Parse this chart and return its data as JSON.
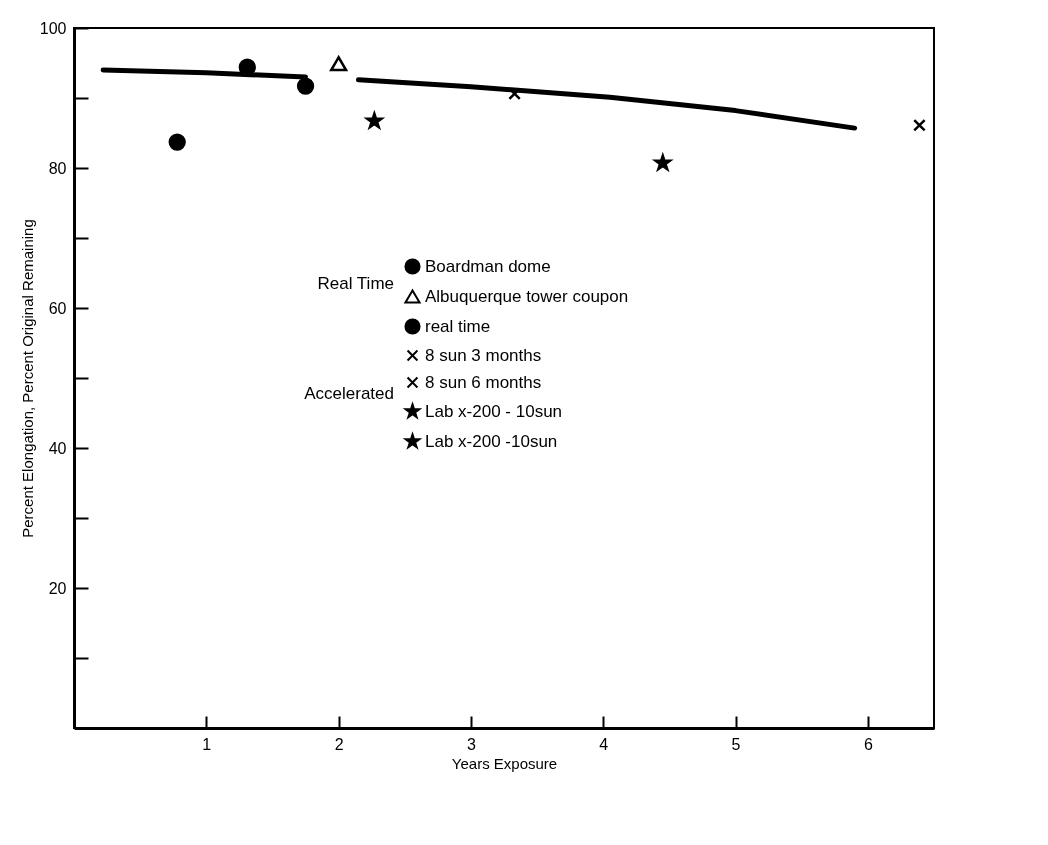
{
  "chart_data": {
    "type": "scatter",
    "xlabel": "Years Exposure",
    "ylabel": "Percent Elongation, Percent Original Remaining",
    "xlim": [
      0,
      6.5
    ],
    "ylim": [
      0,
      100
    ],
    "xticks": [
      1,
      2,
      3,
      4,
      5,
      6
    ],
    "yticks": [
      {
        "value": 10,
        "label": null
      },
      20,
      {
        "value": 30,
        "label": null
      },
      40,
      {
        "value": 50,
        "label": null
      },
      60,
      {
        "value": 70,
        "label": null
      },
      80,
      {
        "value": 90,
        "label": null
      },
      100
    ],
    "grid": false,
    "legend": "top right",
    "annotations": [
      "Real Time",
      "Accelerated"
    ],
    "series": [
      {
        "name": "Boardman dome",
        "color": "#000000",
        "marker": "circle",
        "x": [
          1.31,
          1.75
        ],
        "values": [
          94.4,
          91.7
        ]
      },
      {
        "name": "Albuquerque tower coupon",
        "color": "#000000",
        "marker": "triangle",
        "x": [
          2.0
        ],
        "values": [
          94.9
        ]
      },
      {
        "name": "real time",
        "color": "#000000",
        "marker": "circle",
        "x": [
          0.78
        ],
        "values": [
          83.7
        ]
      },
      {
        "name": "8 sun 3 months",
        "color": "#000000",
        "marker": "cross",
        "x": [
          3.33
        ],
        "values": [
          90.6
        ]
      },
      {
        "name": "8 sun 6 months",
        "color": "#000000",
        "marker": "cross",
        "x": [
          6.39
        ],
        "values": [
          86.1
        ]
      },
      {
        "name": "Lab x-200 - 10sun",
        "color": "#000000",
        "marker": "star",
        "x": [
          2.27
        ],
        "values": [
          86.7
        ]
      },
      {
        "name": "Lab x-200 -10sun",
        "color": "#000000",
        "marker": "star",
        "x": [
          4.45
        ],
        "values": [
          80.7
        ]
      },
      {
        "type": "line",
        "color": "#000000",
        "x": [
          0.22,
          1.0,
          1.75,
          1.95,
          2.15,
          3.0,
          4.05,
          5.0,
          5.9
        ],
        "values": [
          94.0,
          93.6,
          93.0,
          null,
          92.6,
          91.6,
          90.1,
          88.2,
          85.7
        ]
      }
    ]
  }
}
